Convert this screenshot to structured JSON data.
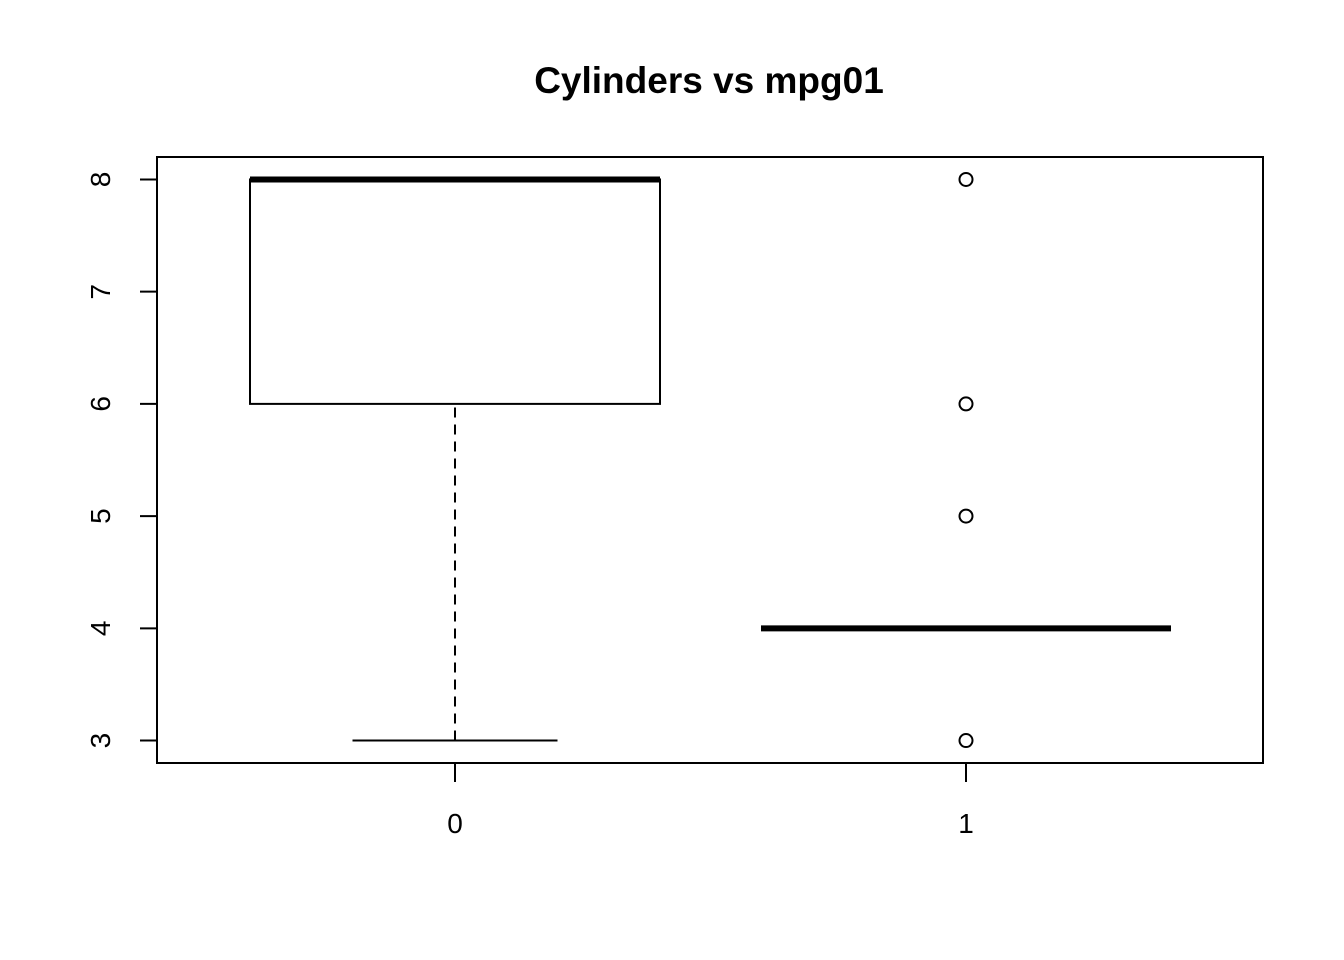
{
  "chart_data": {
    "type": "boxplot",
    "title": "Cylinders vs mpg01",
    "xlabel": "",
    "ylabel": "",
    "categories": [
      "0",
      "1"
    ],
    "y_ticks": [
      3,
      4,
      5,
      6,
      7,
      8
    ],
    "y_tick_labels": [
      "3",
      "4",
      "5",
      "6",
      "7",
      "8"
    ],
    "ylim": [
      2.8,
      8.2
    ],
    "grid": false,
    "boxes": [
      {
        "category": "0",
        "whisker_low": 3,
        "q1": 6,
        "median": 8,
        "q3": 8,
        "whisker_high": 8,
        "outliers": []
      },
      {
        "category": "1",
        "whisker_low": 4,
        "q1": 4,
        "median": 4,
        "q3": 4,
        "whisker_high": 4,
        "outliers": [
          3,
          5,
          6,
          8
        ]
      }
    ]
  }
}
